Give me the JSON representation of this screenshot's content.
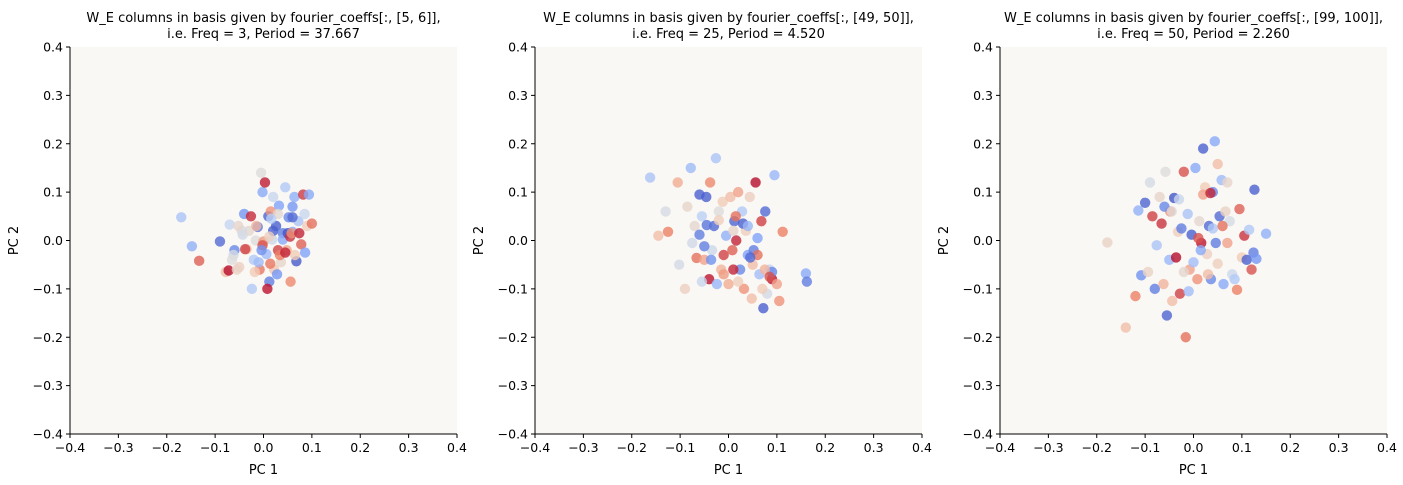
{
  "figure": {
    "facecolor": "#ffffff",
    "axes_facecolor": "#faf8f5",
    "colormap": "coolwarm",
    "colormap_stops": [
      "#3b4cc0",
      "#7b9ff9",
      "#c0d4f5",
      "#dddcdc",
      "#f2cbb7",
      "#ee8468",
      "#b40426"
    ]
  },
  "chart_data": [
    {
      "type": "scatter",
      "title_line1": "W_E columns in basis given by fourier_coeffs[:, [5, 6]],",
      "title_line2": "i.e. Freq = 3, Period = 37.667",
      "xlabel": "PC 1",
      "ylabel": "PC 2",
      "xlim": [
        -0.4,
        0.4
      ],
      "ylim": [
        -0.4,
        0.4
      ],
      "xticks": [
        "−0.4",
        "−0.3",
        "−0.2",
        "−0.1",
        "0.0",
        "0.1",
        "0.2",
        "0.3",
        "0.4"
      ],
      "yticks": [
        "−0.4",
        "−0.3",
        "−0.2",
        "−0.1",
        "0.0",
        "0.1",
        "0.2",
        "0.3",
        "0.4"
      ],
      "grid": false,
      "points": [
        [
          -0.17,
          0.048,
          0.28
        ],
        [
          -0.148,
          -0.012,
          0.22
        ],
        [
          -0.133,
          -0.042,
          0.88
        ],
        [
          -0.09,
          -0.002,
          0.06
        ],
        [
          -0.07,
          0.033,
          0.36
        ],
        [
          -0.06,
          -0.02,
          0.12
        ],
        [
          -0.05,
          -0.055,
          0.62
        ],
        [
          -0.043,
          0.012,
          0.42
        ],
        [
          -0.04,
          0.055,
          0.15
        ],
        [
          -0.035,
          -0.018,
          0.72
        ],
        [
          -0.03,
          0.02,
          0.55
        ],
        [
          -0.026,
          0.05,
          0.95
        ],
        [
          -0.02,
          -0.04,
          0.3
        ],
        [
          -0.016,
          0.0,
          0.5
        ],
        [
          -0.012,
          0.028,
          0.08
        ],
        [
          -0.008,
          -0.06,
          0.85
        ],
        [
          -0.005,
          0.14,
          0.5
        ],
        [
          -0.002,
          0.1,
          0.2
        ],
        [
          0.0,
          -0.002,
          0.78
        ],
        [
          0.003,
          0.12,
          0.97
        ],
        [
          0.006,
          -0.028,
          0.25
        ],
        [
          0.01,
          0.05,
          0.05
        ],
        [
          0.012,
          -0.085,
          0.1
        ],
        [
          0.015,
          0.06,
          0.8
        ],
        [
          0.018,
          0.002,
          0.4
        ],
        [
          0.02,
          0.09,
          0.38
        ],
        [
          0.022,
          -0.06,
          0.68
        ],
        [
          0.026,
          0.03,
          0.04
        ],
        [
          0.03,
          -0.02,
          0.92
        ],
        [
          0.032,
          0.072,
          0.18
        ],
        [
          0.036,
          -0.045,
          0.58
        ],
        [
          0.04,
          0.015,
          0.1
        ],
        [
          0.045,
          0.11,
          0.3
        ],
        [
          0.048,
          -0.02,
          0.75
        ],
        [
          0.052,
          0.048,
          0.12
        ],
        [
          0.056,
          -0.085,
          0.82
        ],
        [
          0.06,
          0.018,
          0.2
        ],
        [
          0.064,
          0.09,
          0.22
        ],
        [
          0.068,
          -0.043,
          0.03
        ],
        [
          0.072,
          0.04,
          0.28
        ],
        [
          0.078,
          -0.008,
          0.88
        ],
        [
          0.082,
          0.095,
          0.93
        ],
        [
          0.086,
          -0.025,
          0.18
        ],
        [
          0.09,
          0.03,
          0.65
        ],
        [
          0.094,
          0.095,
          0.2
        ],
        [
          0.1,
          0.035,
          0.86
        ],
        [
          -0.078,
          -0.065,
          0.7
        ],
        [
          -0.072,
          -0.062,
          0.99
        ],
        [
          -0.062,
          -0.03,
          0.44
        ],
        [
          -0.055,
          -0.06,
          0.6
        ],
        [
          -0.045,
          0.02,
          0.46
        ],
        [
          -0.038,
          -0.018,
          0.92
        ],
        [
          -0.024,
          -0.1,
          0.3
        ],
        [
          -0.018,
          -0.065,
          0.66
        ],
        [
          -0.01,
          -0.045,
          0.25
        ],
        [
          -0.002,
          -0.01,
          0.9
        ],
        [
          0.008,
          -0.1,
          0.98
        ],
        [
          0.014,
          -0.048,
          0.85
        ],
        [
          0.02,
          0.02,
          0.04
        ],
        [
          0.028,
          -0.07,
          0.15
        ],
        [
          0.034,
          -0.03,
          0.84
        ],
        [
          0.04,
          0.002,
          0.2
        ],
        [
          0.05,
          0.015,
          0.02
        ],
        [
          0.055,
          0.008,
          0.94
        ],
        [
          0.06,
          0.07,
          0.15
        ],
        [
          0.065,
          -0.03,
          0.66
        ],
        [
          0.058,
          0.015,
          0.8
        ],
        [
          0.045,
          -0.025,
          0.96
        ],
        [
          0.03,
          0.055,
          0.55
        ],
        [
          -0.065,
          -0.04,
          0.5
        ],
        [
          -0.052,
          0.03,
          0.58
        ],
        [
          -0.015,
          0.03,
          0.72
        ],
        [
          0.016,
          0.045,
          0.32
        ],
        [
          0.085,
          0.055,
          0.38
        ],
        [
          0.074,
          0.015,
          0.96
        ],
        [
          0.06,
          0.048,
          0.06
        ],
        [
          -0.004,
          -0.02,
          0.14
        ],
        [
          0.012,
          0.008,
          0.62
        ]
      ]
    },
    {
      "type": "scatter",
      "title_line1": "W_E columns in basis given by fourier_coeffs[:, [49, 50]],",
      "title_line2": "i.e. Freq = 25, Period = 4.520",
      "xlabel": "PC 1",
      "ylabel": "PC 2",
      "xlim": [
        -0.4,
        0.4
      ],
      "ylim": [
        -0.4,
        0.4
      ],
      "xticks": [
        "−0.4",
        "−0.3",
        "−0.2",
        "−0.1",
        "0.0",
        "0.1",
        "0.2",
        "0.3",
        "0.4"
      ],
      "yticks": [
        "−0.4",
        "−0.3",
        "−0.2",
        "−0.1",
        "0.0",
        "0.1",
        "0.2",
        "0.3",
        "0.4"
      ],
      "grid": false,
      "points": [
        [
          -0.162,
          0.13,
          0.28
        ],
        [
          -0.145,
          0.01,
          0.7
        ],
        [
          -0.13,
          0.06,
          0.46
        ],
        [
          -0.125,
          0.018,
          0.84
        ],
        [
          -0.105,
          0.12,
          0.74
        ],
        [
          -0.102,
          -0.05,
          0.44
        ],
        [
          -0.09,
          -0.1,
          0.62
        ],
        [
          -0.085,
          0.07,
          0.58
        ],
        [
          -0.078,
          0.15,
          0.25
        ],
        [
          -0.075,
          -0.005,
          0.42
        ],
        [
          -0.07,
          0.03,
          0.56
        ],
        [
          -0.066,
          -0.036,
          0.86
        ],
        [
          -0.06,
          0.012,
          0.1
        ],
        [
          -0.055,
          0.05,
          0.32
        ],
        [
          -0.05,
          -0.04,
          0.76
        ],
        [
          -0.046,
          0.09,
          0.04
        ],
        [
          -0.04,
          -0.08,
          0.98
        ],
        [
          -0.038,
          0.12,
          0.82
        ],
        [
          -0.034,
          -0.02,
          0.4
        ],
        [
          -0.03,
          0.03,
          0.06
        ],
        [
          -0.026,
          0.17,
          0.28
        ],
        [
          -0.024,
          -0.09,
          0.24
        ],
        [
          -0.02,
          0.06,
          0.5
        ],
        [
          -0.015,
          -0.06,
          0.72
        ],
        [
          -0.012,
          0.08,
          0.66
        ],
        [
          -0.01,
          -0.03,
          0.92
        ],
        [
          -0.005,
          0.01,
          0.22
        ],
        [
          0.0,
          -0.09,
          0.74
        ],
        [
          0.004,
          0.09,
          0.7
        ],
        [
          0.008,
          -0.02,
          0.88
        ],
        [
          0.012,
          0.04,
          0.05
        ],
        [
          0.016,
          0.0,
          0.96
        ],
        [
          0.02,
          0.1,
          0.76
        ],
        [
          0.024,
          -0.06,
          0.12
        ],
        [
          0.028,
          0.06,
          0.3
        ],
        [
          0.032,
          -0.1,
          0.8
        ],
        [
          0.036,
          0.02,
          0.64
        ],
        [
          0.04,
          -0.03,
          0.18
        ],
        [
          0.044,
          0.09,
          0.62
        ],
        [
          0.048,
          -0.12,
          0.7
        ],
        [
          0.052,
          -0.02,
          0.1
        ],
        [
          0.056,
          0.12,
          0.99
        ],
        [
          0.06,
          -0.03,
          0.86
        ],
        [
          0.064,
          -0.07,
          0.26
        ],
        [
          0.068,
          0.04,
          0.92
        ],
        [
          0.072,
          -0.14,
          0.04
        ],
        [
          0.076,
          0.06,
          0.06
        ],
        [
          0.08,
          -0.11,
          0.44
        ],
        [
          0.085,
          -0.06,
          0.35
        ],
        [
          0.09,
          -0.08,
          0.98
        ],
        [
          0.095,
          0.135,
          0.24
        ],
        [
          0.1,
          -0.09,
          0.76
        ],
        [
          0.105,
          -0.125,
          0.8
        ],
        [
          0.112,
          0.018,
          0.84
        ],
        [
          0.16,
          -0.068,
          0.2
        ],
        [
          0.162,
          -0.085,
          0.1
        ],
        [
          -0.045,
          0.032,
          0.08
        ],
        [
          -0.06,
          0.095,
          0.04
        ],
        [
          -0.02,
          0.042,
          0.64
        ],
        [
          0.01,
          0.02,
          0.58
        ],
        [
          0.03,
          0.035,
          0.04
        ],
        [
          0.05,
          -0.05,
          0.7
        ],
        [
          0.07,
          -0.1,
          0.66
        ],
        [
          0.09,
          -0.065,
          0.12
        ],
        [
          0.01,
          -0.06,
          0.96
        ],
        [
          -0.036,
          -0.04,
          0.14
        ],
        [
          -0.05,
          -0.012,
          0.1
        ],
        [
          0.06,
          0.005,
          0.18
        ],
        [
          0.045,
          -0.035,
          0.06
        ],
        [
          0.02,
          -0.085,
          0.64
        ],
        [
          -0.01,
          -0.07,
          0.78
        ],
        [
          0.075,
          -0.06,
          0.72
        ],
        [
          0.085,
          -0.075,
          0.9
        ],
        [
          -0.055,
          -0.085,
          0.38
        ],
        [
          0.04,
          0.03,
          0.24
        ],
        [
          0.015,
          0.05,
          0.86
        ]
      ]
    },
    {
      "type": "scatter",
      "title_line1": "W_E columns in basis given by fourier_coeffs[:, [99, 100]],",
      "title_line2": "i.e. Freq = 50, Period = 2.260",
      "xlabel": "PC 1",
      "ylabel": "PC 2",
      "xlim": [
        -0.4,
        0.4
      ],
      "ylim": [
        -0.4,
        0.4
      ],
      "xticks": [
        "−0.4",
        "−0.3",
        "−0.2",
        "−0.1",
        "0.0",
        "0.1",
        "0.2",
        "0.3",
        "0.4"
      ],
      "yticks": [
        "−0.4",
        "−0.3",
        "−0.2",
        "−0.1",
        "0.0",
        "0.1",
        "0.2",
        "0.3",
        "0.4"
      ],
      "grid": false,
      "points": [
        [
          -0.178,
          -0.004,
          0.6
        ],
        [
          -0.14,
          -0.18,
          0.7
        ],
        [
          -0.12,
          -0.115,
          0.84
        ],
        [
          -0.114,
          0.062,
          0.22
        ],
        [
          -0.108,
          -0.072,
          0.14
        ],
        [
          -0.1,
          0.078,
          0.05
        ],
        [
          -0.094,
          -0.065,
          0.6
        ],
        [
          -0.09,
          0.12,
          0.45
        ],
        [
          -0.085,
          0.05,
          0.92
        ],
        [
          -0.08,
          -0.1,
          0.1
        ],
        [
          -0.076,
          -0.01,
          0.28
        ],
        [
          -0.07,
          0.09,
          0.58
        ],
        [
          -0.066,
          0.035,
          0.94
        ],
        [
          -0.062,
          -0.09,
          0.72
        ],
        [
          -0.058,
          0.142,
          0.5
        ],
        [
          -0.055,
          -0.155,
          0.05
        ],
        [
          -0.05,
          -0.04,
          0.24
        ],
        [
          -0.048,
          0.06,
          0.82
        ],
        [
          -0.044,
          -0.125,
          0.7
        ],
        [
          -0.04,
          0.088,
          0.02
        ],
        [
          -0.036,
          -0.035,
          0.99
        ],
        [
          -0.032,
          0.018,
          0.64
        ],
        [
          -0.028,
          -0.11,
          0.92
        ],
        [
          -0.025,
          0.025,
          0.1
        ],
        [
          -0.02,
          0.142,
          0.9
        ],
        [
          -0.016,
          -0.2,
          0.86
        ],
        [
          -0.012,
          0.055,
          0.28
        ],
        [
          -0.008,
          -0.06,
          0.76
        ],
        [
          -0.004,
          0.012,
          0.04
        ],
        [
          0.0,
          -0.045,
          0.26
        ],
        [
          0.004,
          0.15,
          0.2
        ],
        [
          0.008,
          -0.08,
          0.8
        ],
        [
          0.012,
          0.04,
          0.56
        ],
        [
          0.016,
          -0.005,
          0.98
        ],
        [
          0.02,
          0.19,
          0.04
        ],
        [
          0.024,
          0.11,
          0.66
        ],
        [
          0.028,
          -0.028,
          0.62
        ],
        [
          0.032,
          0.03,
          0.06
        ],
        [
          0.036,
          -0.08,
          0.12
        ],
        [
          0.04,
          0.1,
          0.12
        ],
        [
          0.044,
          0.205,
          0.2
        ],
        [
          0.046,
          -0.005,
          0.1
        ],
        [
          0.05,
          0.158,
          0.7
        ],
        [
          0.054,
          0.05,
          0.06
        ],
        [
          0.058,
          0.125,
          0.25
        ],
        [
          0.062,
          -0.09,
          0.2
        ],
        [
          0.066,
          0.06,
          0.6
        ],
        [
          0.07,
          -0.005,
          0.76
        ],
        [
          0.075,
          0.04,
          0.45
        ],
        [
          0.08,
          -0.07,
          0.4
        ],
        [
          0.085,
          -0.08,
          0.3
        ],
        [
          0.09,
          -0.102,
          0.84
        ],
        [
          0.095,
          0.065,
          0.88
        ],
        [
          0.1,
          -0.035,
          0.66
        ],
        [
          0.105,
          0.01,
          0.94
        ],
        [
          0.11,
          -0.04,
          0.04
        ],
        [
          0.115,
          0.022,
          0.3
        ],
        [
          0.12,
          -0.06,
          0.9
        ],
        [
          0.124,
          -0.025,
          0.1
        ],
        [
          0.126,
          0.105,
          0.04
        ],
        [
          0.13,
          -0.038,
          0.15
        ],
        [
          0.15,
          0.014,
          0.22
        ],
        [
          -0.03,
          0.085,
          0.38
        ],
        [
          0.01,
          0.005,
          0.9
        ],
        [
          0.02,
          0.095,
          0.76
        ],
        [
          0.03,
          -0.07,
          0.7
        ],
        [
          -0.01,
          -0.105,
          0.26
        ],
        [
          0.04,
          0.025,
          0.3
        ],
        [
          -0.02,
          -0.065,
          0.56
        ],
        [
          0.06,
          0.03,
          0.86
        ],
        [
          -0.06,
          0.07,
          0.12
        ],
        [
          0.035,
          0.098,
          0.96
        ],
        [
          0.05,
          -0.048,
          0.64
        ],
        [
          0.015,
          -0.02,
          0.2
        ],
        [
          -0.045,
          0.06,
          0.52
        ],
        [
          0.07,
          0.12,
          0.58
        ]
      ]
    }
  ]
}
